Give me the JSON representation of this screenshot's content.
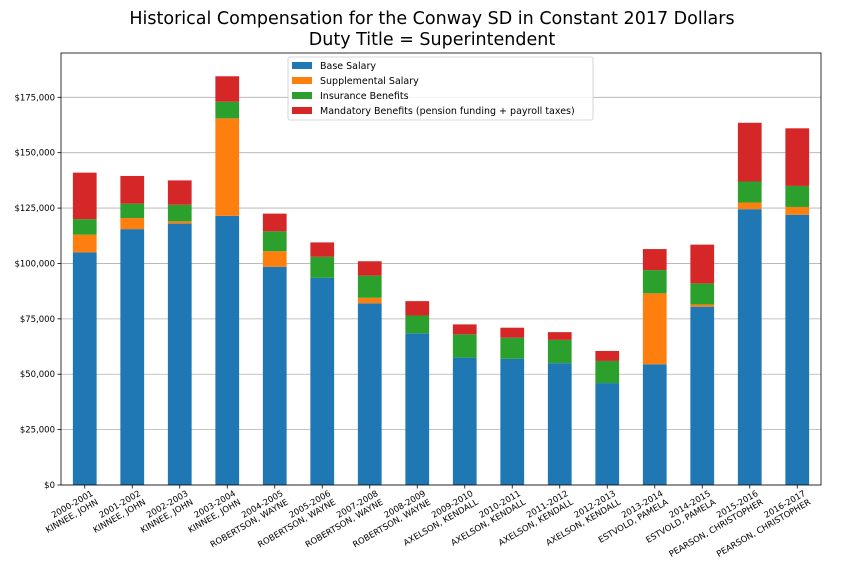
{
  "chart_data": {
    "type": "bar",
    "stacked": true,
    "title": "Historical Compensation for the Conway SD in Constant 2017 Dollars",
    "subtitle": "Duty Title = Superintendent",
    "xlabel": "",
    "ylabel": "",
    "ylim": [
      0,
      195000
    ],
    "yticks": [
      0,
      25000,
      50000,
      75000,
      100000,
      125000,
      150000,
      175000
    ],
    "ytick_labels": [
      "$0",
      "$25,000",
      "$50,000",
      "$75,000",
      "$100,000",
      "$125,000",
      "$150,000",
      "$175,000"
    ],
    "grid": "horizontal",
    "legend_position": "top-center",
    "categories": [
      [
        "2000-2001",
        "KINNEE, JOHN"
      ],
      [
        "2001-2002",
        "KINNEE, JOHN"
      ],
      [
        "2002-2003",
        "KINNEE, JOHN"
      ],
      [
        "2003-2004",
        "KINNEE, JOHN"
      ],
      [
        "2004-2005",
        "ROBERTSON, WAYNE"
      ],
      [
        "2005-2006",
        "ROBERTSON, WAYNE"
      ],
      [
        "2007-2008",
        "ROBERTSON, WAYNE"
      ],
      [
        "2008-2009",
        "ROBERTSON, WAYNE"
      ],
      [
        "2009-2010",
        "AXELSON, KENDALL"
      ],
      [
        "2010-2011",
        "AXELSON, KENDALL"
      ],
      [
        "2011-2012",
        "AXELSON, KENDALL"
      ],
      [
        "2012-2013",
        "AXELSON, KENDALL"
      ],
      [
        "2013-2014",
        "ESTVOLD, PAMELA"
      ],
      [
        "2014-2015",
        "ESTVOLD, PAMELA"
      ],
      [
        "2015-2016",
        "PEARSON, CHRISTOPHER"
      ],
      [
        "2016-2017",
        "PEARSON, CHRISTOPHER"
      ]
    ],
    "series": [
      {
        "name": "Base Salary",
        "color": "#1f77b4",
        "values": [
          105000,
          115500,
          118000,
          121500,
          98500,
          93500,
          82000,
          68500,
          57500,
          57000,
          55000,
          46000,
          54500,
          80500,
          124500,
          122000
        ]
      },
      {
        "name": "Supplemental Salary",
        "color": "#ff7f0e",
        "values": [
          8000,
          5000,
          1000,
          44000,
          7000,
          0,
          2500,
          0,
          0,
          0,
          0,
          0,
          32000,
          1000,
          3000,
          3500
        ]
      },
      {
        "name": "Insurance Benefits",
        "color": "#2ca02c",
        "values": [
          7000,
          6500,
          7500,
          7500,
          9000,
          9500,
          10000,
          8000,
          10500,
          9500,
          10500,
          10000,
          10500,
          9500,
          9500,
          9500
        ]
      },
      {
        "name": "Mandatory Benefits (pension funding + payroll taxes)",
        "color": "#d62728",
        "values": [
          21000,
          12500,
          11000,
          11500,
          8000,
          6500,
          6500,
          6500,
          4500,
          4500,
          3500,
          4500,
          9500,
          17500,
          26500,
          26000
        ]
      }
    ]
  }
}
